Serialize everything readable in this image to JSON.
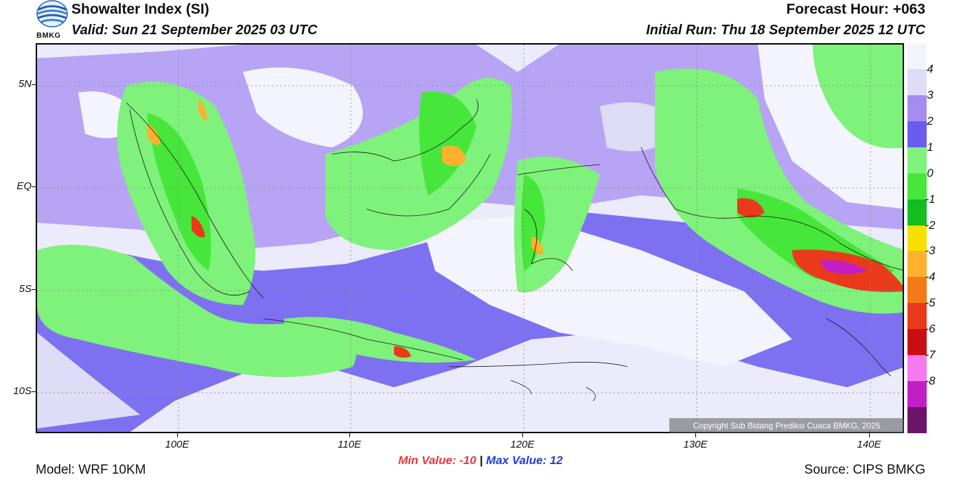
{
  "header": {
    "title": "Showalter Index (SI)",
    "valid": "Valid: Sun 21 September 2025 03 UTC",
    "forecast_hour": "Forecast Hour: +063",
    "initial_run": "Initial Run: Thu 18 September 2025 12 UTC",
    "logo_text": "BMKG"
  },
  "map": {
    "lat_labels": [
      "5N",
      "EQ",
      "5S",
      "10S"
    ],
    "lon_labels": [
      "100E",
      "110E",
      "120E",
      "130E",
      "140E"
    ],
    "copyright": "Copyright Sub Bidang Prediksi Cuaca BMKG, 2025"
  },
  "legend": {
    "labels": [
      "4",
      "3",
      "2",
      "1",
      "0",
      "-1",
      "-2",
      "-3",
      "-4",
      "-5",
      "-6",
      "-7",
      "-8"
    ],
    "colors": [
      "#f4f4fe",
      "#dedcf6",
      "#a58cf2",
      "#6a5cf0",
      "#7ef27a",
      "#46e63a",
      "#12be20",
      "#f5e000",
      "#ffb02e",
      "#f37a14",
      "#ea3a1c",
      "#c90f14",
      "#f57af0",
      "#c21ec6",
      "#6b1468"
    ]
  },
  "footer": {
    "min_value": "Min Value: -10",
    "separator": "|",
    "max_value": "Max Value:  12",
    "model": "Model: WRF 10KM",
    "source": "Source: CIPS BMKG"
  }
}
